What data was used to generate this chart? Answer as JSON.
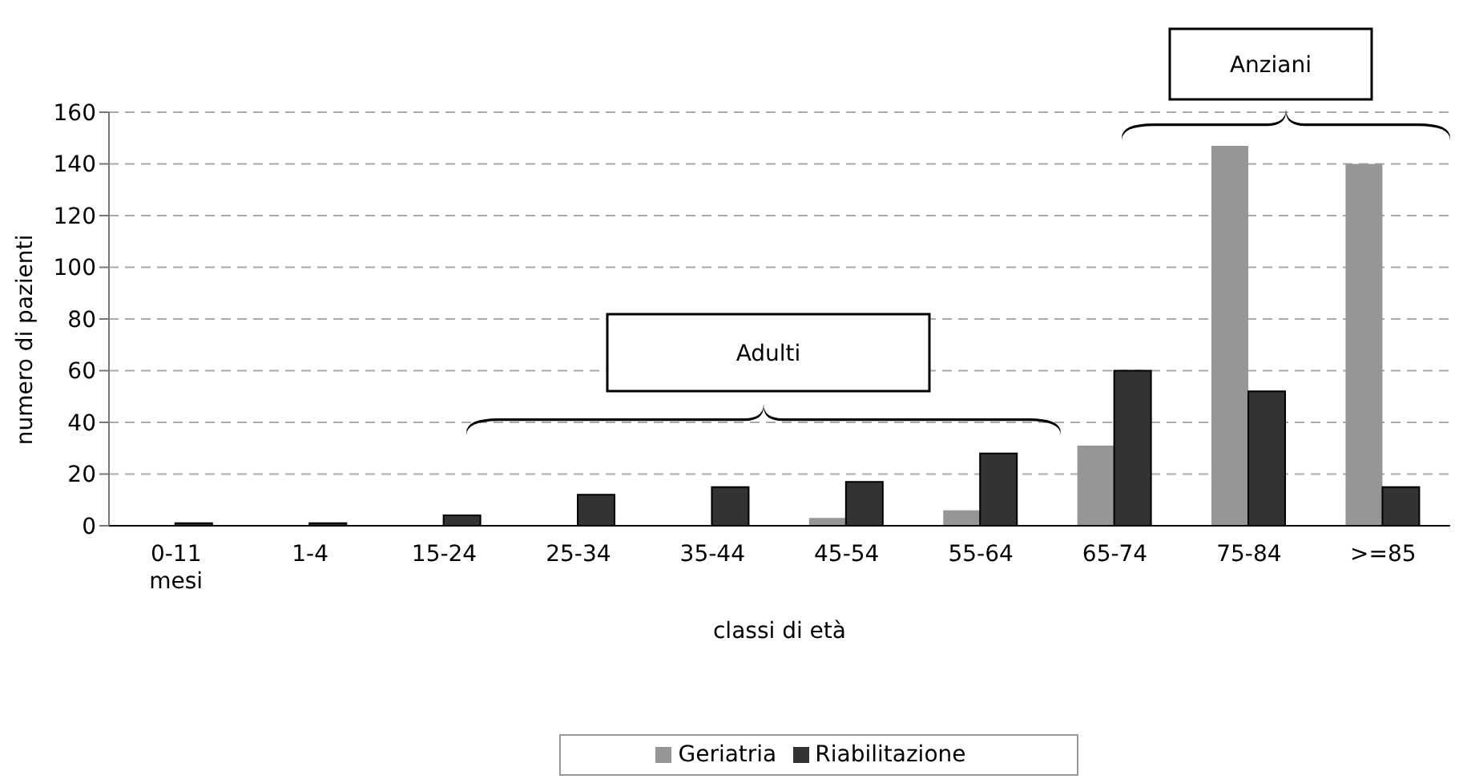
{
  "chart_data": {
    "type": "bar",
    "xlabel": "classi di età",
    "ylabel": "numero di pazienti",
    "categories": [
      "0-11 mesi",
      "1-4",
      "15-24",
      "25-34",
      "35-44",
      "45-54",
      "55-64",
      "65-74",
      "75-84",
      ">=85"
    ],
    "series": [
      {
        "name": "Geriatria",
        "color": "#969696",
        "values": [
          0,
          0,
          0,
          0,
          0,
          3,
          6,
          31,
          147,
          140
        ]
      },
      {
        "name": "Riabilitazione",
        "color": "#333333",
        "values": [
          1,
          1,
          4,
          12,
          15,
          17,
          28,
          60,
          52,
          15
        ]
      }
    ],
    "ylim": [
      0,
      160
    ],
    "yticks": [
      0,
      20,
      40,
      60,
      80,
      100,
      120,
      140,
      160
    ],
    "grid": "y",
    "legend": "bottom",
    "annotations": [
      "Adulti",
      "Anziani"
    ]
  }
}
